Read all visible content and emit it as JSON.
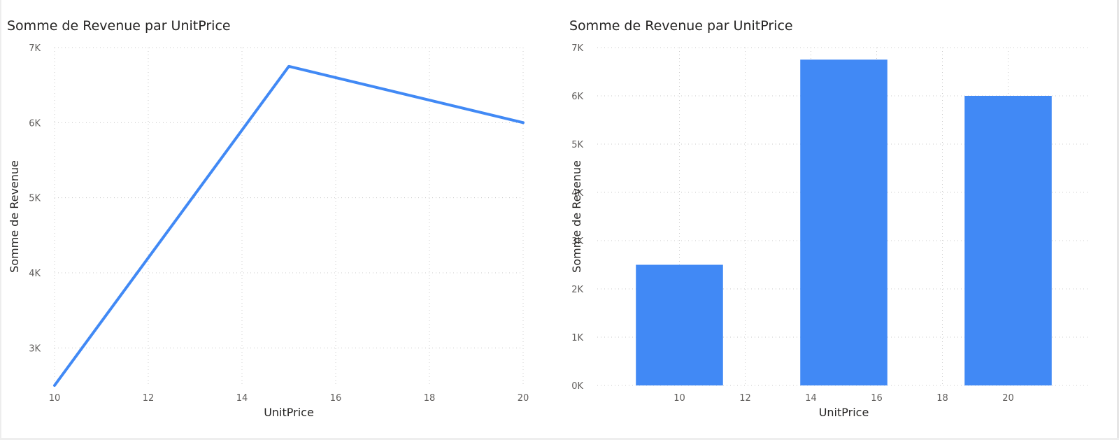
{
  "colors": {
    "series": "#4189f5",
    "gridline": "#c8c8c8",
    "tick_text": "#605e5c",
    "title_text": "#252423"
  },
  "chart_data": [
    {
      "type": "line",
      "title": "Somme de Revenue par UnitPrice",
      "xlabel": "UnitPrice",
      "ylabel": "Somme de Revenue",
      "x": [
        10,
        15,
        20
      ],
      "values": [
        2500,
        6750,
        6000
      ],
      "xlim": [
        10,
        20
      ],
      "ylim": [
        2500,
        7000
      ],
      "x_ticks": [
        10,
        12,
        14,
        16,
        18,
        20
      ],
      "x_tick_labels": [
        "10",
        "12",
        "14",
        "16",
        "18",
        "20"
      ],
      "y_ticks": [
        3000,
        4000,
        5000,
        6000,
        7000
      ],
      "y_tick_labels": [
        "3K",
        "4K",
        "5K",
        "6K",
        "7K"
      ],
      "grid": true
    },
    {
      "type": "bar",
      "title": "Somme de Revenue par UnitPrice",
      "xlabel": "UnitPrice",
      "ylabel": "Somme de Revenue",
      "x": [
        10,
        15,
        20
      ],
      "values": [
        2500,
        6750,
        6000
      ],
      "xlim": [
        7.5,
        22.5
      ],
      "ylim": [
        0,
        7000
      ],
      "x_ticks": [
        10,
        12,
        14,
        16,
        18,
        20
      ],
      "x_tick_labels": [
        "10",
        "12",
        "14",
        "16",
        "18",
        "20"
      ],
      "y_ticks": [
        0,
        1000,
        2000,
        3000,
        4000,
        5000,
        6000,
        7000
      ],
      "y_tick_labels": [
        "0K",
        "1K",
        "2K",
        "3K",
        "4K",
        "5K",
        "6K",
        "7K"
      ],
      "grid": true
    }
  ]
}
